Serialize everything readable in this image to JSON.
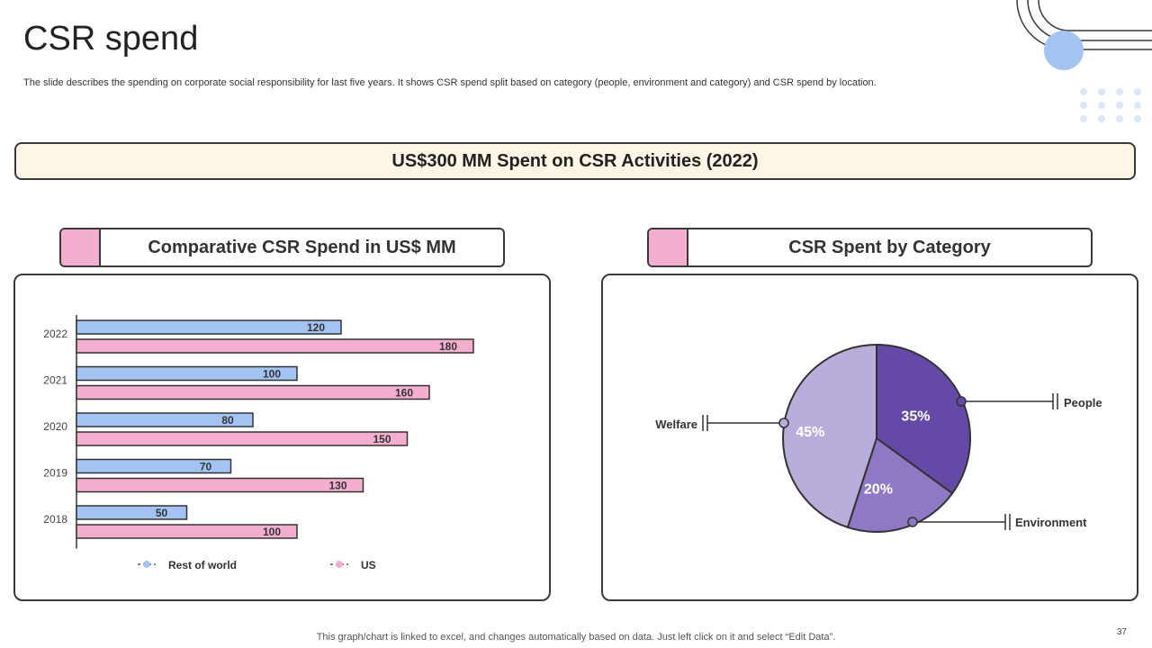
{
  "slide": {
    "title": "CSR spend",
    "description": "The slide describes the spending on corporate social responsibility for last five years. It shows CSR spend split based on category (people, environment and category) and CSR spend by location.",
    "banner": "US$300 MM Spent on CSR Activities (2022)",
    "footer": "This graph/chart is linked to excel,  and changes automatically based on data. Just left click on it and select “Edit Data”.",
    "page_number": "37"
  },
  "left_section": {
    "heading": "Comparative CSR Spend in US$ MM"
  },
  "right_section": {
    "heading": "CSR Spent by Category"
  },
  "colors": {
    "rest_of_world": "#a3c4f3",
    "us": "#f4afd0",
    "people": "#6449a6",
    "environment": "#8f79c4",
    "welfare": "#b9addb",
    "accent_circle": "#a3c4f3",
    "dots": "#dbe8fb"
  },
  "chart_data": [
    {
      "type": "bar",
      "orientation": "horizontal",
      "title": "Comparative CSR Spend in US$ MM",
      "categories": [
        "2022",
        "2021",
        "2020",
        "2019",
        "2018"
      ],
      "series": [
        {
          "name": "Rest of world",
          "values": [
            120,
            100,
            80,
            70,
            50
          ]
        },
        {
          "name": "US",
          "values": [
            180,
            160,
            150,
            130,
            100
          ]
        }
      ],
      "xlim": [
        0,
        200
      ],
      "legend": "bottom"
    },
    {
      "type": "pie",
      "title": "CSR Spent by Category",
      "labels": [
        "People",
        "Environment",
        "Welfare"
      ],
      "values": [
        35,
        20,
        45
      ],
      "value_labels": [
        "35%",
        "20%",
        "45%"
      ]
    }
  ]
}
